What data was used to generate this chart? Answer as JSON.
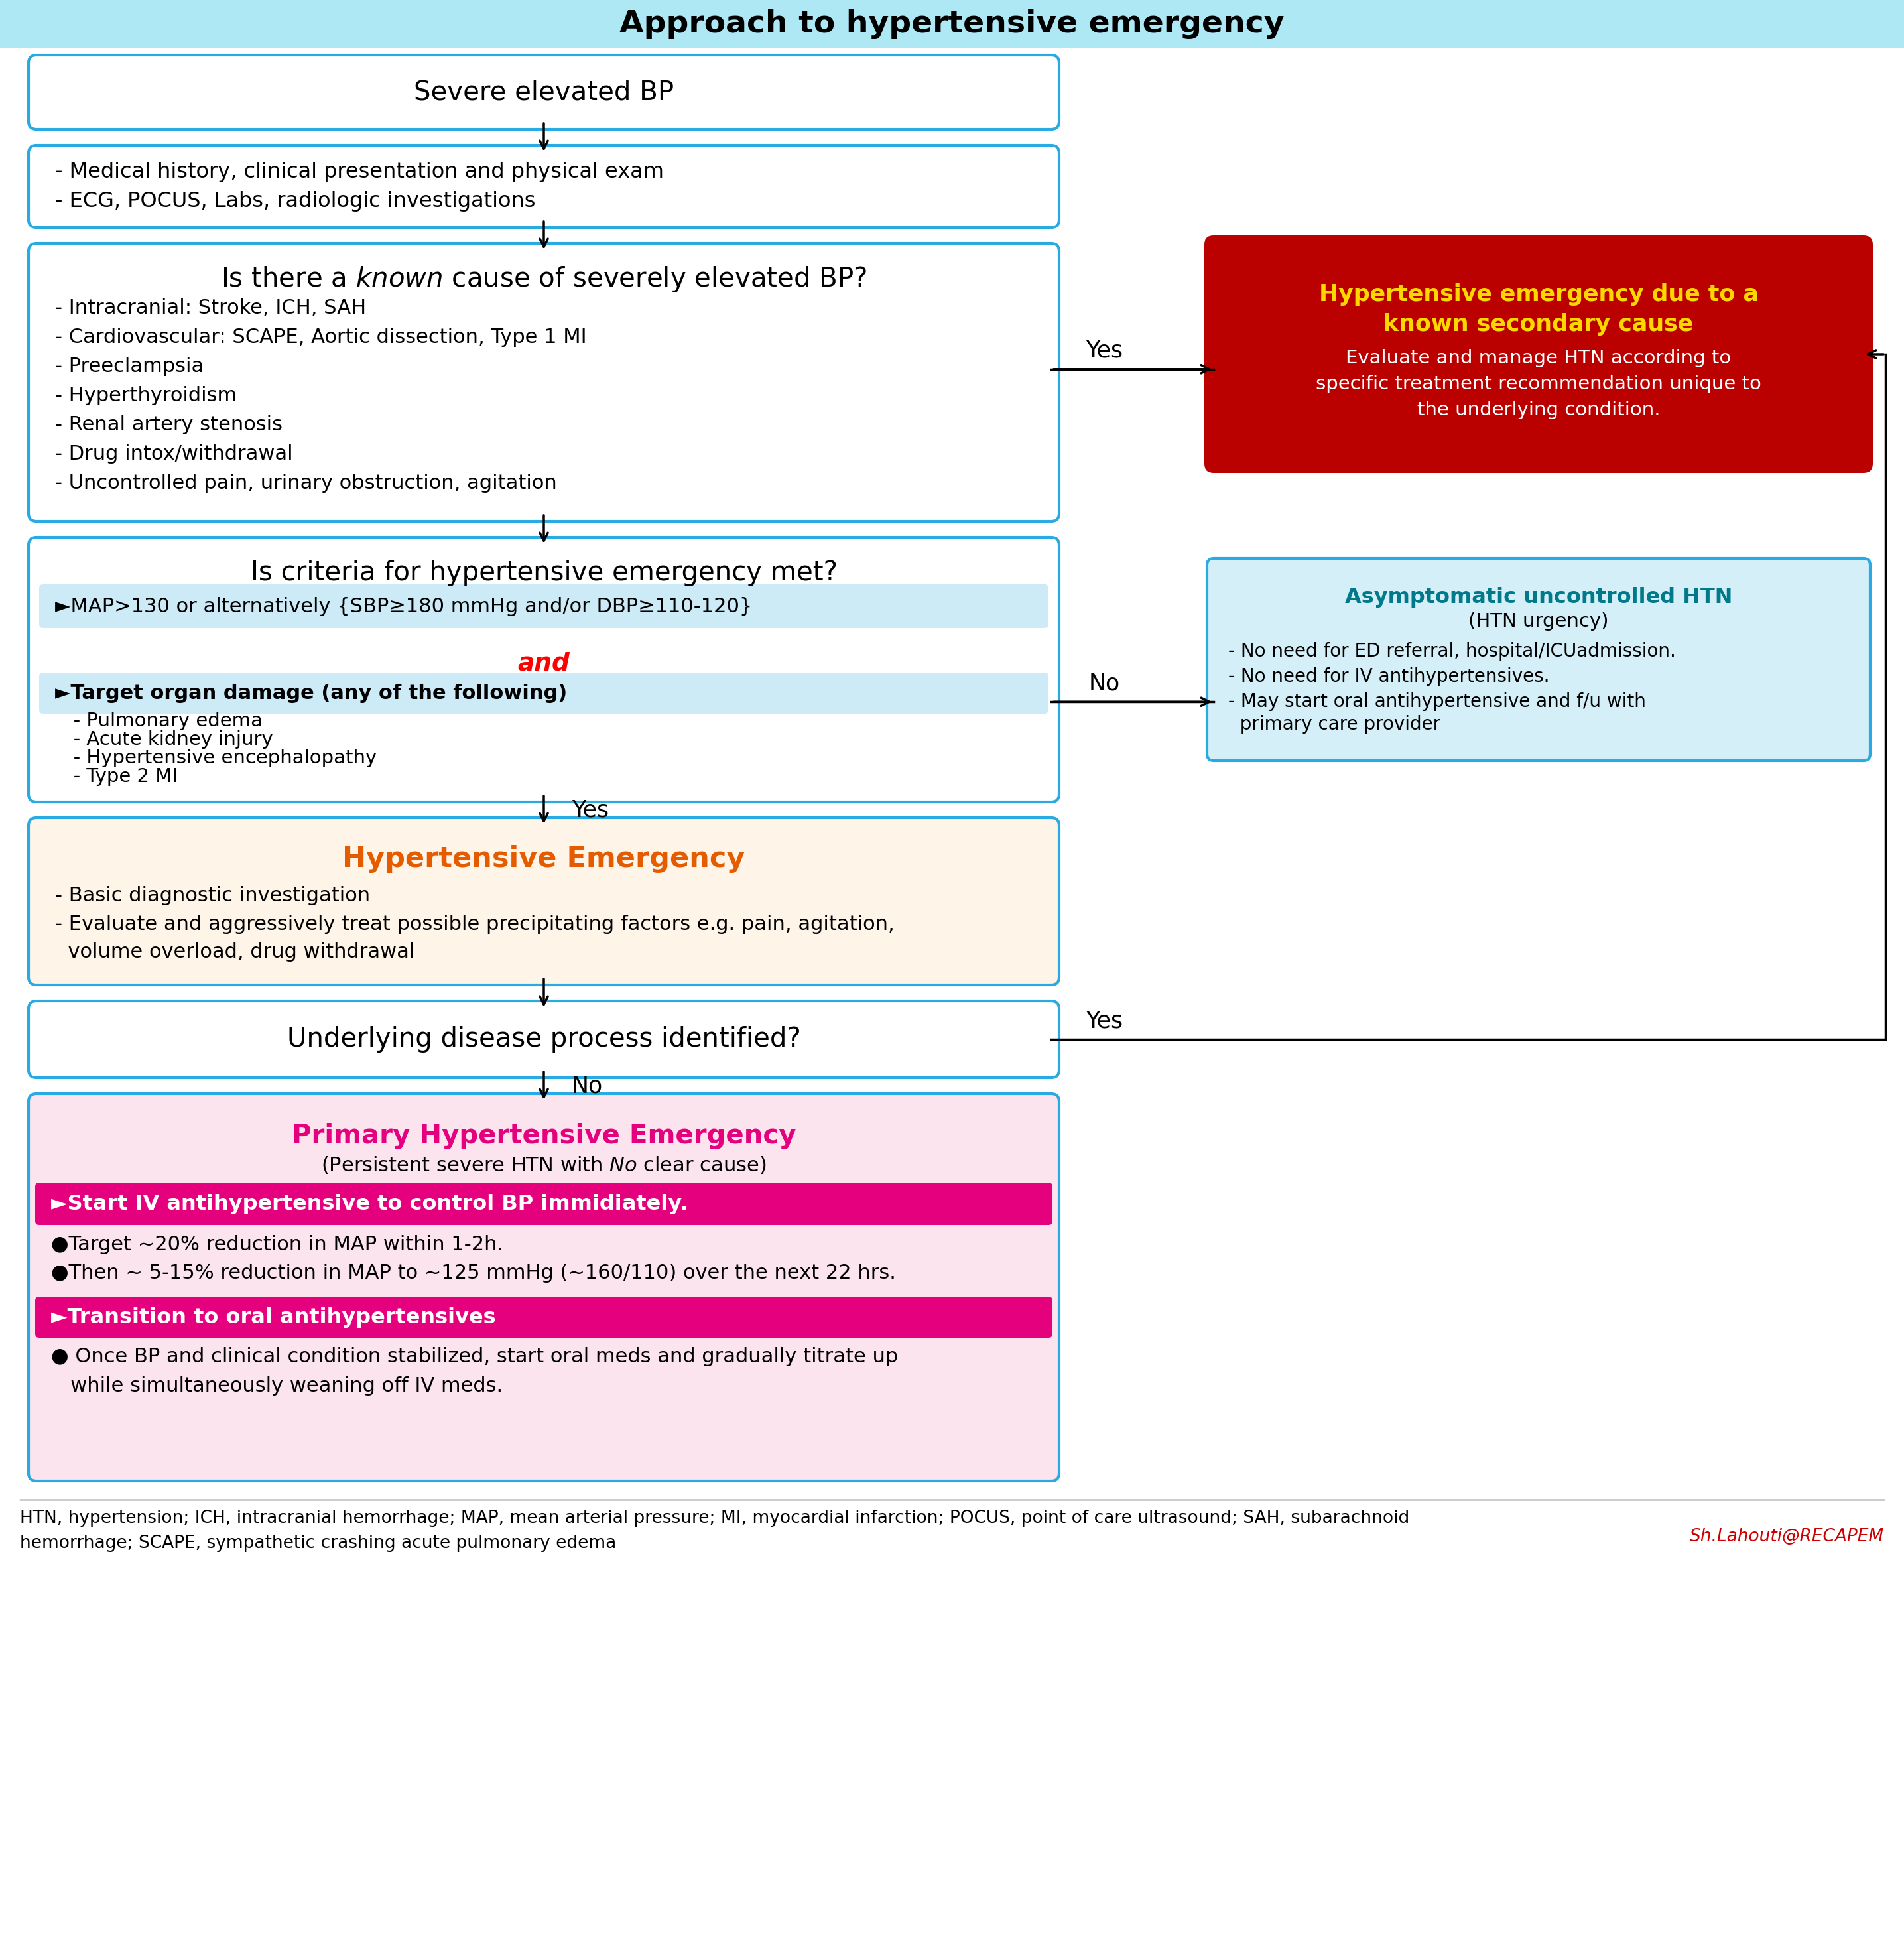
{
  "title": "Approach to hypertensive emergency",
  "title_bg": "#aee8f5",
  "fig_bg": "#ffffff",
  "box_border_color": "#29aae2",
  "box_bg_white": "#ffffff",
  "box_bg_light_blue": "#cdeaf7",
  "box_bg_light_orange": "#fef4e8",
  "box_bg_light_pink": "#fce4ef",
  "box_bg_red": "#bb0000",
  "box_bg_cyan_light": "#d4eff7",
  "magenta_bar": "#e5007d",
  "footnote_line1": "HTN, hypertension; ICH, intracranial hemorrhage; MAP, mean arterial pressure; MI, myocardial infarction; POCUS, point of care ultrasound; SAH, subarachnoid",
  "footnote_line2": "hemorrhage; SCAPE, sympathetic crashing acute pulmonary edema",
  "credit": "Sh.Lahouti@RECAPEM",
  "credit_color": "#cc0000",
  "items3": [
    "- Intracranial: Stroke, ICH, SAH",
    "- Cardiovascular: SCAPE, Aortic dissection, Type 1 MI",
    "- Preeclampsia",
    "- Hyperthyroidism",
    "- Renal artery stenosis",
    "- Drug intox/withdrawal",
    "- Uncontrolled pain, urinary obstruction, agitation"
  ],
  "organ_items": [
    "   - Pulmonary edema",
    "   - Acute kidney injury",
    "   - Hypertensive encephalopathy",
    "   - Type 2 MI"
  ]
}
